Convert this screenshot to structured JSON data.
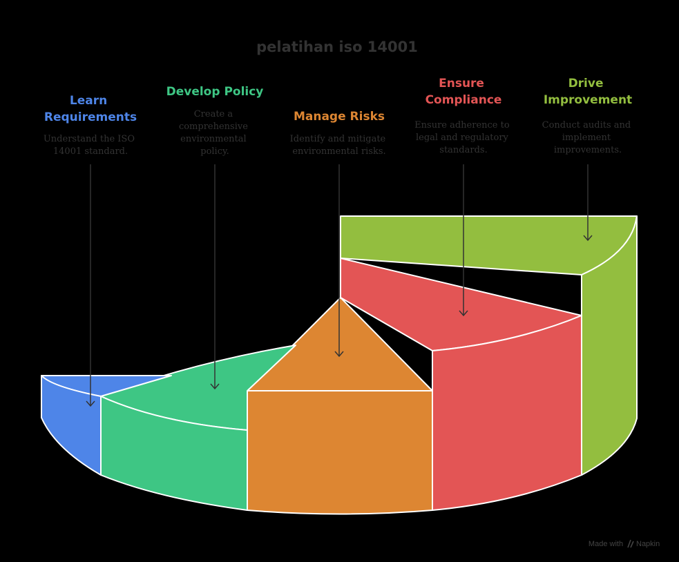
{
  "title": "pelatihan iso 14001",
  "colors": {
    "learn": "#4e85e8",
    "policy": "#3ec684",
    "risks": "#dd8632",
    "compliance": "#e35555",
    "improvement": "#93be3f",
    "title": "#333333"
  },
  "steps": [
    {
      "id": "learn",
      "heading": [
        "Learn",
        "Requirements"
      ],
      "description": [
        "Understand the ISO",
        "14001 standard."
      ]
    },
    {
      "id": "policy",
      "heading": [
        "Develop Policy"
      ],
      "description": [
        "Create a",
        "comprehensive",
        "environmental",
        "policy."
      ]
    },
    {
      "id": "risks",
      "heading": [
        "Manage Risks"
      ],
      "description": [
        "Identify and mitigate",
        "environmental risks."
      ]
    },
    {
      "id": "compliance",
      "heading": [
        "Ensure",
        "Compliance"
      ],
      "description": [
        "Ensure adherence to",
        "legal and regulatory",
        "standards."
      ]
    },
    {
      "id": "improvement",
      "heading": [
        "Drive",
        "Improvement"
      ],
      "description": [
        "Conduct audits and",
        "implement",
        "improvements."
      ]
    }
  ],
  "credit": {
    "prefix": "Made with",
    "brand": "Napkin",
    "logo_icon": "napkin-logo-icon"
  }
}
